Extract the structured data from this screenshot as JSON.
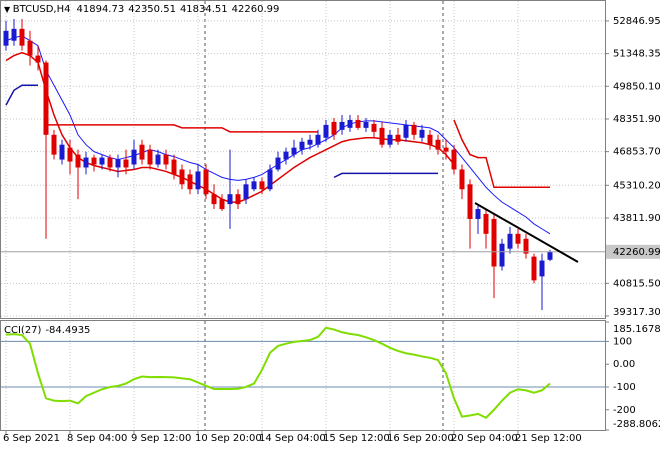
{
  "chart_data": [
    {
      "type": "candlestick",
      "title": "BTCUSD,H4",
      "categories": [
        "6 Sep 2021",
        null,
        null,
        null,
        null,
        null,
        null,
        null,
        "8 Sep 04:00",
        null,
        null,
        null,
        null,
        null,
        null,
        null,
        "9 Sep 12:00",
        null,
        null,
        null,
        null,
        null,
        null,
        null,
        "10 Sep 20:00",
        null,
        null,
        null,
        null,
        null,
        null,
        null,
        "14 Sep 04:00",
        null,
        null,
        null,
        null,
        null,
        null,
        null,
        "15 Sep 12:00",
        null,
        null,
        null,
        null,
        null,
        null,
        null,
        "16 Sep 20:00",
        null,
        null,
        null,
        null,
        null,
        null,
        null,
        "20 Sep 04:00",
        null,
        null,
        null,
        null,
        null,
        null,
        null,
        "21 Sep 12:00",
        null,
        null,
        null,
        null
      ],
      "open": [
        51712,
        51939,
        52484,
        51939,
        51258,
        50940,
        47626,
        46491,
        47036,
        46718,
        46128,
        46582,
        46264,
        46582,
        46128,
        46491,
        46264,
        47172,
        46945,
        46264,
        46718,
        46491,
        46037,
        45810,
        45129,
        46037,
        44902,
        44675,
        44448,
        44902,
        44675,
        45129,
        45492,
        45129,
        46037,
        46491,
        46718,
        46945,
        47172,
        47172,
        47490,
        48216,
        47853,
        47944,
        48307,
        47944,
        48125,
        47944,
        47172,
        47626,
        47490,
        48080,
        47490,
        47626,
        47399,
        47036,
        46945,
        46037,
        45356,
        43767,
        43994,
        43767,
        41588,
        42405,
        43086,
        42859,
        42041,
        41134,
        41894.73
      ],
      "high": [
        52847,
        52938,
        52938,
        52393,
        51712,
        51031,
        47853,
        47399,
        47399,
        46945,
        46854,
        46718,
        46718,
        46718,
        46718,
        46945,
        47399,
        47399,
        47172,
        46945,
        46945,
        46718,
        46264,
        46037,
        46264,
        46264,
        45356,
        44902,
        46945,
        45129,
        45583,
        45674,
        45674,
        46264,
        46854,
        47036,
        47399,
        47490,
        47626,
        47853,
        48307,
        48398,
        48534,
        48534,
        48534,
        48398,
        48307,
        48216,
        47853,
        47944,
        48307,
        48216,
        48080,
        47853,
        47626,
        47399,
        47172,
        46264,
        45583,
        44448,
        44221,
        43994,
        42859,
        43404,
        43313,
        43086,
        42178,
        42178,
        42350.51
      ],
      "low": [
        51485,
        51712,
        51485,
        50804,
        50577,
        42859,
        46491,
        46264,
        45810,
        44675,
        45810,
        45946,
        46037,
        45946,
        45674,
        45810,
        46037,
        46264,
        46037,
        46128,
        46037,
        45583,
        45129,
        44902,
        44902,
        44675,
        44221,
        44130,
        43313,
        44221,
        44448,
        45038,
        44902,
        45038,
        45946,
        46264,
        46582,
        46718,
        46945,
        47036,
        47308,
        47399,
        47626,
        47762,
        47853,
        47762,
        47490,
        47036,
        47036,
        47172,
        47308,
        47399,
        47308,
        46945,
        46718,
        46491,
        45810,
        44675,
        42405,
        43086,
        42405,
        40135,
        41406,
        42178,
        42405,
        41951,
        40816,
        39590,
        41834.51
      ],
      "close": [
        52393,
        52484,
        51712,
        51258,
        50940,
        47626,
        46718,
        47172,
        46400,
        46128,
        46582,
        46264,
        46582,
        46128,
        46491,
        46128,
        46945,
        46491,
        46264,
        46718,
        46264,
        45810,
        45356,
        45129,
        45946,
        44902,
        44448,
        44221,
        44902,
        44448,
        45356,
        45492,
        45129,
        46037,
        46582,
        46854,
        47036,
        47308,
        47399,
        47626,
        48080,
        47626,
        48216,
        48307,
        47944,
        48216,
        47762,
        47172,
        47626,
        47308,
        48080,
        47626,
        47853,
        47172,
        46945,
        46854,
        46037,
        45129,
        43767,
        44221,
        43086,
        41588,
        42632,
        43086,
        42632,
        42178,
        40952,
        41860,
        42260.99
      ],
      "up_color": "#1a1ad0",
      "down_color": "#e00000",
      "overlays": [
        {
          "color": "#1a1aff",
          "values": [
            51939,
            52075,
            52166,
            51939,
            51712,
            50577,
            49896,
            49215,
            48534,
            47626,
            47172,
            46854,
            46718,
            46582,
            46491,
            46582,
            46673,
            46809,
            46945,
            46854,
            46718,
            46627,
            46491,
            46355,
            46264,
            46037,
            45855,
            45674,
            45583,
            45538,
            45583,
            45674,
            45810,
            46037,
            46264,
            46491,
            46718,
            46945,
            47036,
            47217,
            47399,
            47626,
            47944,
            48125,
            48216,
            48262,
            48262,
            48216,
            48171,
            48125,
            48080,
            48035,
            47989,
            47944,
            47762,
            47399,
            47036,
            46582,
            46128,
            45674,
            45220,
            44857,
            44539,
            44312,
            44085,
            43858,
            43540,
            43313,
            43086
          ]
        },
        {
          "color": "#e00000",
          "values": [
            51031,
            51258,
            51394,
            51258,
            50940,
            49669,
            48534,
            47626,
            47036,
            46582,
            46355,
            46219,
            46128,
            46037,
            45946,
            45992,
            46037,
            46128,
            46128,
            46037,
            45946,
            45810,
            45674,
            45492,
            45311,
            45129,
            44902,
            44675,
            44539,
            44539,
            44675,
            44857,
            45038,
            45311,
            45583,
            45855,
            46128,
            46355,
            46582,
            46763,
            46945,
            47127,
            47308,
            47399,
            47444,
            47490,
            47490,
            47444,
            47399,
            47399,
            47354,
            47308,
            47263,
            47172,
            47036,
            46718,
            46264,
            null,
            null,
            null,
            null,
            null,
            null,
            null,
            null,
            null,
            null,
            null,
            null
          ]
        },
        {
          "color": "#e00000",
          "values": [
            null,
            null,
            null,
            null,
            null,
            48080,
            48080,
            48080,
            48080,
            48080,
            48080,
            48080,
            48080,
            48080,
            48080,
            48080,
            48080,
            48080,
            48080,
            48080,
            48080,
            48080,
            47944,
            47944,
            47944,
            47944,
            47944,
            47944,
            47762,
            47762,
            47762,
            47762,
            47762,
            47762,
            47762,
            47762,
            47762,
            47762,
            47762,
            47762,
            null,
            null,
            null,
            null,
            null,
            null,
            null,
            null,
            null,
            null,
            null,
            null,
            null,
            null,
            null,
            null,
            48307,
            47399,
            46718,
            46582,
            46582,
            45220,
            45220,
            45220,
            45220,
            45220,
            45220,
            45220,
            45220
          ]
        },
        {
          "color": "#1414a8",
          "values": [
            48988,
            49669,
            49896,
            49896,
            49896,
            null,
            null,
            null,
            null,
            null,
            null,
            null,
            null,
            null,
            null,
            null,
            null,
            null,
            null,
            null,
            null,
            null,
            null,
            null,
            null,
            null,
            null,
            null,
            null,
            null,
            null,
            null,
            null,
            null,
            null,
            null,
            null,
            null,
            null,
            null,
            null,
            45674,
            45855,
            45855,
            45855,
            45855,
            45855,
            45855,
            45855,
            45855,
            45855,
            45855,
            45855,
            45855,
            45855,
            null,
            null,
            null,
            null,
            null,
            null,
            null,
            null,
            null,
            null,
            null,
            null,
            null,
            null
          ]
        }
      ],
      "ylim": [
        39226,
        53761
      ],
      "yticks": [
        52846.95,
        51348.35,
        {
          "value": 49850.1,
          "label": "49850.10"
        },
        {
          "value": 48351.9,
          "label": "48351.90"
        },
        {
          "value": 46853.7,
          "label": "46853.70"
        },
        {
          "value": 45310.2,
          "label": "45310.20"
        },
        {
          "value": 43811.9,
          "label": "43811.90"
        },
        {
          "value": 40815.5,
          "label": "40815.50"
        },
        {
          "value": 39317.3,
          "label": "39317.30"
        }
      ],
      "grid": true
    },
    {
      "type": "line",
      "title": "CCI(27)",
      "color": "#80dd00",
      "values": [
        130,
        132,
        128,
        90,
        -40,
        -150,
        -160,
        -162,
        -160,
        -172,
        -140,
        -125,
        -110,
        -100,
        -95,
        -85,
        -66,
        -54,
        -57,
        -56,
        -57,
        -58,
        -62,
        -66,
        -80,
        -95,
        -109,
        -109,
        -109,
        -108,
        -100,
        -85,
        -25,
        50,
        80,
        90,
        98,
        102,
        106,
        120,
        160,
        152,
        140,
        133,
        128,
        118,
        106,
        90,
        72,
        58,
        48,
        42,
        34,
        28,
        18,
        -40,
        -150,
        -230,
        -225,
        -218,
        -235,
        -200,
        -160,
        -125,
        -110,
        -115,
        -125,
        -115,
        -84.4935
      ],
      "ylim": [
        -288.8062,
        185.1678
      ],
      "yticks": [
        185.1678,
        100,
        {
          "value": 0,
          "label": "0.00"
        },
        -100,
        -200,
        -288.8062
      ],
      "levels": [
        100,
        -100
      ],
      "level_color": "#6a8caf"
    }
  ]
}
